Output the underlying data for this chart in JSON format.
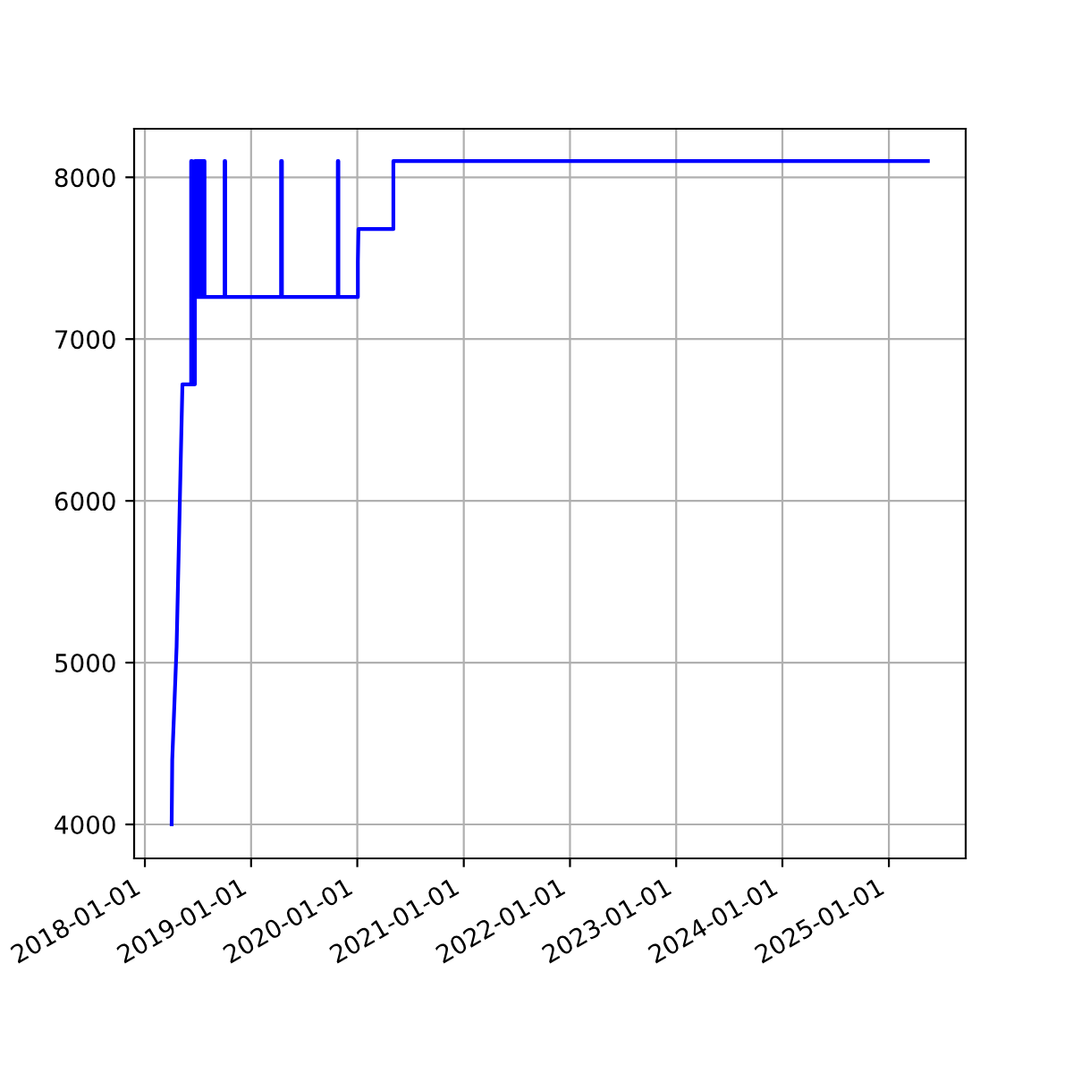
{
  "chart_data": {
    "type": "line",
    "x": [
      "2018-04-03",
      "2018-04-05",
      "2018-04-20",
      "2018-05-10",
      "2018-06-09",
      "2018-06-09",
      "2018-06-12",
      "2018-06-12",
      "2018-06-22",
      "2018-06-22",
      "2018-06-25",
      "2018-06-25",
      "2018-06-28",
      "2018-06-28",
      "2018-07-01",
      "2018-07-01",
      "2018-07-04",
      "2018-07-04",
      "2018-07-07",
      "2018-07-07",
      "2018-07-10",
      "2018-07-10",
      "2018-07-13",
      "2018-07-13",
      "2018-07-16",
      "2018-07-16",
      "2018-07-19",
      "2018-07-19",
      "2018-07-22",
      "2018-07-22",
      "2018-07-25",
      "2018-07-25",
      "2018-07-28",
      "2018-07-28",
      "2018-10-02",
      "2018-10-02",
      "2018-10-04",
      "2018-10-04",
      "2019-04-14",
      "2019-04-14",
      "2019-04-17",
      "2019-04-17",
      "2019-10-26",
      "2019-10-26",
      "2019-10-28",
      "2019-10-28",
      "2020-01-03",
      "2020-01-03",
      "2020-01-05",
      "2020-05-04",
      "2020-05-04",
      "2025-05-15"
    ],
    "series": [
      {
        "color": "#0000ff",
        "values": [
          4000,
          4400,
          5100,
          6720,
          6720,
          8100,
          8100,
          6720,
          6720,
          8100,
          8100,
          7260,
          7260,
          8100,
          8100,
          7260,
          7260,
          8100,
          8100,
          7260,
          7260,
          8100,
          8100,
          7260,
          7260,
          8100,
          8100,
          7260,
          7260,
          8100,
          8100,
          7260,
          7260,
          7260,
          7260,
          8100,
          8100,
          7260,
          7260,
          8100,
          8100,
          7260,
          7260,
          8100,
          8100,
          7260,
          7260,
          7480,
          7680,
          7680,
          8100,
          8100
        ]
      }
    ],
    "xlim": [
      "2017-11-25",
      "2025-09-22"
    ],
    "xticks": [
      {
        "value": "2018-01-01",
        "label": "2018-01-01"
      },
      {
        "value": "2019-01-01",
        "label": "2019-01-01"
      },
      {
        "value": "2020-01-01",
        "label": "2020-01-01"
      },
      {
        "value": "2021-01-01",
        "label": "2021-01-01"
      },
      {
        "value": "2022-01-01",
        "label": "2022-01-01"
      },
      {
        "value": "2023-01-01",
        "label": "2023-01-01"
      },
      {
        "value": "2024-01-01",
        "label": "2024-01-01"
      },
      {
        "value": "2025-01-01",
        "label": "2025-01-01"
      }
    ],
    "ylim": [
      3790,
      8300
    ],
    "yticks": [
      4000,
      5000,
      6000,
      7000,
      8000
    ],
    "grid": true
  }
}
